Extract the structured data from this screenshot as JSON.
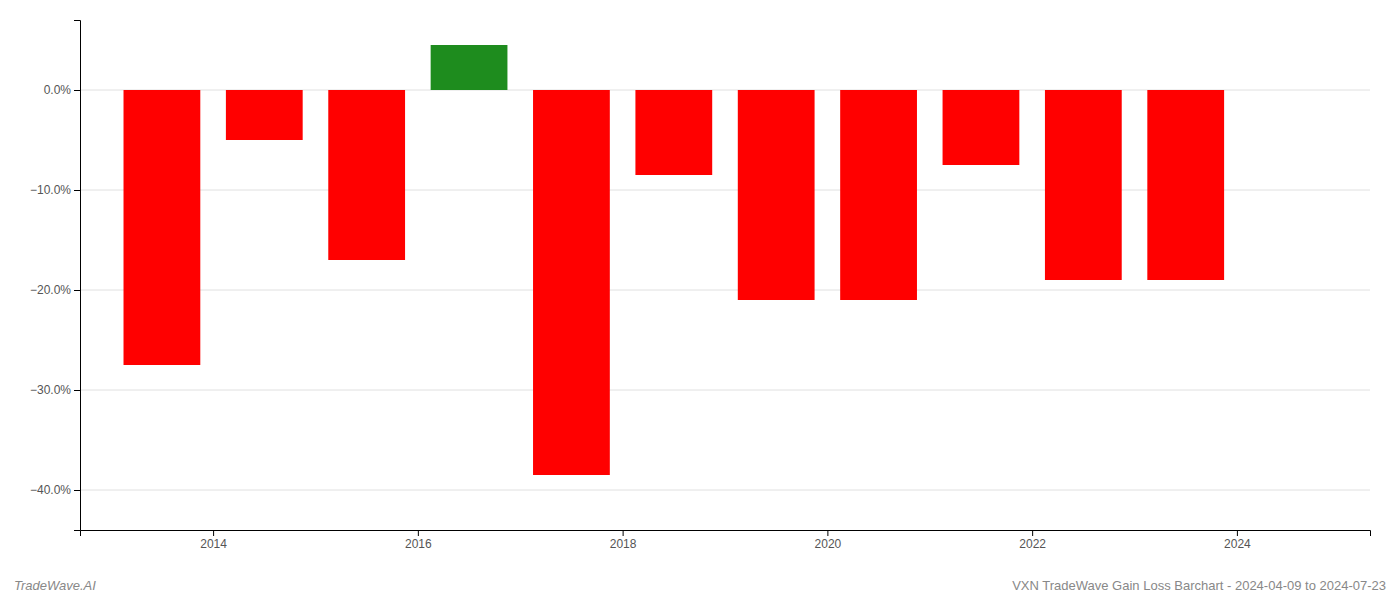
{
  "chart_data": {
    "type": "bar",
    "x": [
      2013.5,
      2014.5,
      2015.5,
      2016.5,
      2017.5,
      2018.5,
      2019.5,
      2020.5,
      2021.5,
      2022.5,
      2023.5
    ],
    "values": [
      -27.5,
      -5.0,
      -17.0,
      4.5,
      -38.5,
      -8.5,
      -21.0,
      -21.0,
      -7.5,
      -19.0,
      -19.0
    ],
    "colors": [
      "#ff0000",
      "#ff0000",
      "#ff0000",
      "#1e8c1e",
      "#ff0000",
      "#ff0000",
      "#ff0000",
      "#ff0000",
      "#ff0000",
      "#ff0000",
      "#ff0000"
    ],
    "xlim": [
      2012.7,
      2025.3
    ],
    "xticks": [
      2014,
      2016,
      2018,
      2020,
      2022,
      2024
    ],
    "ylim": [
      -44,
      7
    ],
    "yticks": [
      {
        "value": 0.0,
        "label": "0.0%"
      },
      {
        "value": -10.0,
        "label": "−10.0%"
      },
      {
        "value": -20.0,
        "label": "−20.0%"
      },
      {
        "value": -30.0,
        "label": "−30.0%"
      },
      {
        "value": -40.0,
        "label": "−40.0%"
      }
    ],
    "grid": true,
    "annotations": [
      "TradeWave.AI",
      "VXN TradeWave Gain Loss Barchart - 2024-04-09 to 2024-07-23"
    ]
  }
}
